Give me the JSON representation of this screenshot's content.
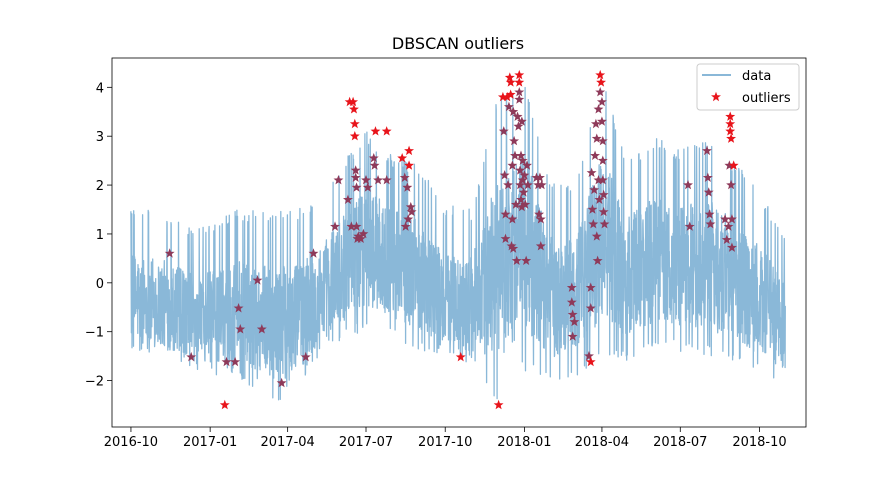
{
  "chart_data": {
    "type": "line",
    "title": "DBSCAN outliers",
    "xlabel": "",
    "ylabel": "",
    "x_tick_labels": [
      "2016-10",
      "2017-01",
      "2017-04",
      "2017-07",
      "2017-10",
      "2018-01",
      "2018-04",
      "2018-07",
      "2018-10"
    ],
    "x_ticks": [
      "2016-10-01",
      "2017-01-01",
      "2017-04-01",
      "2017-07-01",
      "2017-10-01",
      "2018-01-01",
      "2018-04-01",
      "2018-07-01",
      "2018-10-01"
    ],
    "xlim": [
      "2016-09-09",
      "2018-11-24"
    ],
    "ylim": [
      -2.95,
      4.6
    ],
    "y_ticks": [
      -2,
      -1,
      0,
      1,
      2,
      3,
      4
    ],
    "y_tick_labels": [
      "−2",
      "−1",
      "0",
      "1",
      "2",
      "3",
      "4"
    ],
    "grid": false,
    "legend_position": "top-right",
    "colors": {
      "data": "#8ab8d8",
      "outliers_fill": "#e8141b",
      "outliers_overlap": "#8e3a5a",
      "axes": "#000000"
    },
    "series": [
      {
        "name": "data",
        "style": "line",
        "range": [
          "2016-10-01",
          "2018-10-31"
        ],
        "envelope": [
          {
            "x": "2016-10-01",
            "lo": -1.5,
            "hi": 1.6
          },
          {
            "x": "2016-11-01",
            "lo": -1.6,
            "hi": 1.5
          },
          {
            "x": "2016-12-01",
            "lo": -1.7,
            "hi": 1.2
          },
          {
            "x": "2017-01-01",
            "lo": -1.9,
            "hi": 1.2
          },
          {
            "x": "2017-02-01",
            "lo": -2.0,
            "hi": 1.5
          },
          {
            "x": "2017-03-01",
            "lo": -2.2,
            "hi": 1.5
          },
          {
            "x": "2017-04-01",
            "lo": -2.6,
            "hi": 1.5
          },
          {
            "x": "2017-05-01",
            "lo": -1.7,
            "hi": 1.6
          },
          {
            "x": "2017-06-01",
            "lo": -1.2,
            "hi": 2.4
          },
          {
            "x": "2017-07-01",
            "lo": -1.0,
            "hi": 3.1
          },
          {
            "x": "2017-08-01",
            "lo": -1.1,
            "hi": 2.6
          },
          {
            "x": "2017-09-01",
            "lo": -1.4,
            "hi": 2.4
          },
          {
            "x": "2017-10-01",
            "lo": -1.5,
            "hi": 1.6
          },
          {
            "x": "2017-11-01",
            "lo": -1.7,
            "hi": 1.5
          },
          {
            "x": "2017-12-01",
            "lo": -2.5,
            "hi": 3.8
          },
          {
            "x": "2018-01-01",
            "lo": -1.8,
            "hi": 4.2
          },
          {
            "x": "2018-02-01",
            "lo": -2.0,
            "hi": 2.1
          },
          {
            "x": "2018-03-01",
            "lo": -2.0,
            "hi": 2.0
          },
          {
            "x": "2018-04-01",
            "lo": -1.6,
            "hi": 4.2
          },
          {
            "x": "2018-05-01",
            "lo": -1.6,
            "hi": 2.5
          },
          {
            "x": "2018-06-01",
            "lo": -1.3,
            "hi": 3.0
          },
          {
            "x": "2018-07-01",
            "lo": -1.4,
            "hi": 2.7
          },
          {
            "x": "2018-08-01",
            "lo": -1.5,
            "hi": 3.0
          },
          {
            "x": "2018-09-01",
            "lo": -1.6,
            "hi": 2.5
          },
          {
            "x": "2018-10-01",
            "lo": -1.9,
            "hi": 1.9
          },
          {
            "x": "2018-10-31",
            "lo": -2.0,
            "hi": 0.9
          }
        ]
      },
      {
        "name": "outliers",
        "style": "star",
        "points": [
          {
            "x": "2016-11-15",
            "y": 0.6
          },
          {
            "x": "2016-12-10",
            "y": -1.52
          },
          {
            "x": "2017-01-18",
            "y": -2.5
          },
          {
            "x": "2017-01-20",
            "y": -1.62
          },
          {
            "x": "2017-01-30",
            "y": -1.62
          },
          {
            "x": "2017-02-03",
            "y": -0.52
          },
          {
            "x": "2017-02-05",
            "y": -0.95
          },
          {
            "x": "2017-02-25",
            "y": 0.05
          },
          {
            "x": "2017-03-02",
            "y": -0.95
          },
          {
            "x": "2017-03-25",
            "y": -2.05
          },
          {
            "x": "2017-04-22",
            "y": -1.52
          },
          {
            "x": "2017-05-01",
            "y": 0.6
          },
          {
            "x": "2017-05-26",
            "y": 1.15
          },
          {
            "x": "2017-05-30",
            "y": 2.1
          },
          {
            "x": "2017-06-10",
            "y": 1.7
          },
          {
            "x": "2017-06-12",
            "y": 3.7
          },
          {
            "x": "2017-06-14",
            "y": 1.15
          },
          {
            "x": "2017-06-16",
            "y": 3.7
          },
          {
            "x": "2017-06-17",
            "y": 3.55
          },
          {
            "x": "2017-06-18",
            "y": 3.25
          },
          {
            "x": "2017-06-18",
            "y": 3.0
          },
          {
            "x": "2017-06-19",
            "y": 2.3
          },
          {
            "x": "2017-06-19",
            "y": 2.15
          },
          {
            "x": "2017-06-20",
            "y": 1.95
          },
          {
            "x": "2017-06-20",
            "y": 1.15
          },
          {
            "x": "2017-06-21",
            "y": 0.9
          },
          {
            "x": "2017-06-22",
            "y": 0.95
          },
          {
            "x": "2017-06-25",
            "y": 0.9
          },
          {
            "x": "2017-06-28",
            "y": 1.0
          },
          {
            "x": "2017-07-01",
            "y": 2.1
          },
          {
            "x": "2017-07-03",
            "y": 1.95
          },
          {
            "x": "2017-07-10",
            "y": 2.55
          },
          {
            "x": "2017-07-11",
            "y": 2.4
          },
          {
            "x": "2017-07-12",
            "y": 3.1
          },
          {
            "x": "2017-07-15",
            "y": 2.1
          },
          {
            "x": "2017-07-25",
            "y": 3.1
          },
          {
            "x": "2017-07-25",
            "y": 2.1
          },
          {
            "x": "2017-08-12",
            "y": 2.55
          },
          {
            "x": "2017-08-15",
            "y": 2.15
          },
          {
            "x": "2017-08-16",
            "y": 1.15
          },
          {
            "x": "2017-08-18",
            "y": 1.95
          },
          {
            "x": "2017-08-19",
            "y": 1.3
          },
          {
            "x": "2017-08-20",
            "y": 2.7
          },
          {
            "x": "2017-08-20",
            "y": 2.4
          },
          {
            "x": "2017-08-22",
            "y": 1.55
          },
          {
            "x": "2017-08-23",
            "y": 1.45
          },
          {
            "x": "2017-10-19",
            "y": -1.52
          },
          {
            "x": "2017-12-02",
            "y": -2.5
          },
          {
            "x": "2017-12-07",
            "y": 3.8
          },
          {
            "x": "2017-12-08",
            "y": 3.1
          },
          {
            "x": "2017-12-09",
            "y": 2.2
          },
          {
            "x": "2017-12-10",
            "y": 1.4
          },
          {
            "x": "2017-12-10",
            "y": 0.9
          },
          {
            "x": "2017-12-12",
            "y": 3.8
          },
          {
            "x": "2017-12-13",
            "y": 2.0
          },
          {
            "x": "2017-12-14",
            "y": 3.6
          },
          {
            "x": "2017-12-15",
            "y": 4.2
          },
          {
            "x": "2017-12-16",
            "y": 4.1
          },
          {
            "x": "2017-12-16",
            "y": 3.85
          },
          {
            "x": "2017-12-17",
            "y": 0.75
          },
          {
            "x": "2017-12-18",
            "y": 2.4
          },
          {
            "x": "2017-12-18",
            "y": 1.3
          },
          {
            "x": "2017-12-19",
            "y": 3.5
          },
          {
            "x": "2017-12-19",
            "y": 0.7
          },
          {
            "x": "2017-12-20",
            "y": 2.9
          },
          {
            "x": "2017-12-21",
            "y": 2.6
          },
          {
            "x": "2017-12-22",
            "y": 1.6
          },
          {
            "x": "2017-12-23",
            "y": 0.45
          },
          {
            "x": "2017-12-24",
            "y": 3.4
          },
          {
            "x": "2017-12-25",
            "y": 3.2
          },
          {
            "x": "2017-12-26",
            "y": 4.25
          },
          {
            "x": "2017-12-26",
            "y": 4.1
          },
          {
            "x": "2017-12-26",
            "y": 3.9
          },
          {
            "x": "2017-12-26",
            "y": 3.75
          },
          {
            "x": "2017-12-27",
            "y": 2.3
          },
          {
            "x": "2017-12-27",
            "y": 2.0
          },
          {
            "x": "2017-12-28",
            "y": 1.7
          },
          {
            "x": "2017-12-28",
            "y": 2.6
          },
          {
            "x": "2017-12-29",
            "y": 3.3
          },
          {
            "x": "2017-12-29",
            "y": 1.55
          },
          {
            "x": "2017-12-30",
            "y": 2.5
          },
          {
            "x": "2017-12-30",
            "y": 2.1
          },
          {
            "x": "2017-12-31",
            "y": 1.85
          },
          {
            "x": "2018-01-01",
            "y": 2.2
          },
          {
            "x": "2018-01-02",
            "y": 1.6
          },
          {
            "x": "2018-01-03",
            "y": 0.45
          },
          {
            "x": "2018-01-04",
            "y": 2.4
          },
          {
            "x": "2018-01-05",
            "y": 2.0
          },
          {
            "x": "2018-01-15",
            "y": 2.15
          },
          {
            "x": "2018-01-17",
            "y": 2.0
          },
          {
            "x": "2018-01-18",
            "y": 1.4
          },
          {
            "x": "2018-01-19",
            "y": 2.15
          },
          {
            "x": "2018-01-20",
            "y": 1.3
          },
          {
            "x": "2018-01-20",
            "y": 0.75
          },
          {
            "x": "2018-01-21",
            "y": 2.0
          },
          {
            "x": "2018-02-25",
            "y": -0.1
          },
          {
            "x": "2018-02-25",
            "y": -0.4
          },
          {
            "x": "2018-02-26",
            "y": -0.65
          },
          {
            "x": "2018-02-26",
            "y": -1.1
          },
          {
            "x": "2018-02-28",
            "y": -0.8
          },
          {
            "x": "2018-03-17",
            "y": -1.5
          },
          {
            "x": "2018-03-19",
            "y": -1.62
          },
          {
            "x": "2018-03-19",
            "y": -0.1
          },
          {
            "x": "2018-03-19",
            "y": -0.52
          },
          {
            "x": "2018-03-20",
            "y": 2.25
          },
          {
            "x": "2018-03-21",
            "y": 1.5
          },
          {
            "x": "2018-03-22",
            "y": 1.2
          },
          {
            "x": "2018-03-23",
            "y": 1.9
          },
          {
            "x": "2018-03-24",
            "y": 2.6
          },
          {
            "x": "2018-03-25",
            "y": 3.25
          },
          {
            "x": "2018-03-26",
            "y": 2.95
          },
          {
            "x": "2018-03-26",
            "y": 0.95
          },
          {
            "x": "2018-03-27",
            "y": 0.45
          },
          {
            "x": "2018-03-28",
            "y": 3.55
          },
          {
            "x": "2018-03-28",
            "y": 2.1
          },
          {
            "x": "2018-03-29",
            "y": 1.7
          },
          {
            "x": "2018-03-30",
            "y": 4.25
          },
          {
            "x": "2018-03-30",
            "y": 3.9
          },
          {
            "x": "2018-03-31",
            "y": 4.1
          },
          {
            "x": "2018-04-01",
            "y": 3.7
          },
          {
            "x": "2018-04-01",
            "y": 3.3
          },
          {
            "x": "2018-04-02",
            "y": 2.9
          },
          {
            "x": "2018-04-02",
            "y": 2.5
          },
          {
            "x": "2018-04-02",
            "y": 2.1
          },
          {
            "x": "2018-04-03",
            "y": 1.8
          },
          {
            "x": "2018-04-03",
            "y": 1.45
          },
          {
            "x": "2018-04-04",
            "y": 1.2
          },
          {
            "x": "2018-07-10",
            "y": 2.0
          },
          {
            "x": "2018-07-12",
            "y": 1.15
          },
          {
            "x": "2018-08-01",
            "y": 2.7
          },
          {
            "x": "2018-08-02",
            "y": 2.15
          },
          {
            "x": "2018-08-03",
            "y": 1.85
          },
          {
            "x": "2018-08-04",
            "y": 1.4
          },
          {
            "x": "2018-08-05",
            "y": 1.2
          },
          {
            "x": "2018-08-22",
            "y": 1.3
          },
          {
            "x": "2018-08-24",
            "y": 0.88
          },
          {
            "x": "2018-08-26",
            "y": 1.15
          },
          {
            "x": "2018-08-27",
            "y": 2.4
          },
          {
            "x": "2018-08-28",
            "y": 3.4
          },
          {
            "x": "2018-08-28",
            "y": 3.25
          },
          {
            "x": "2018-08-28",
            "y": 3.1
          },
          {
            "x": "2018-08-29",
            "y": 2.95
          },
          {
            "x": "2018-08-29",
            "y": 2.0
          },
          {
            "x": "2018-08-30",
            "y": 1.3
          },
          {
            "x": "2018-08-30",
            "y": 0.72
          },
          {
            "x": "2018-09-01",
            "y": 2.4
          }
        ]
      }
    ]
  }
}
